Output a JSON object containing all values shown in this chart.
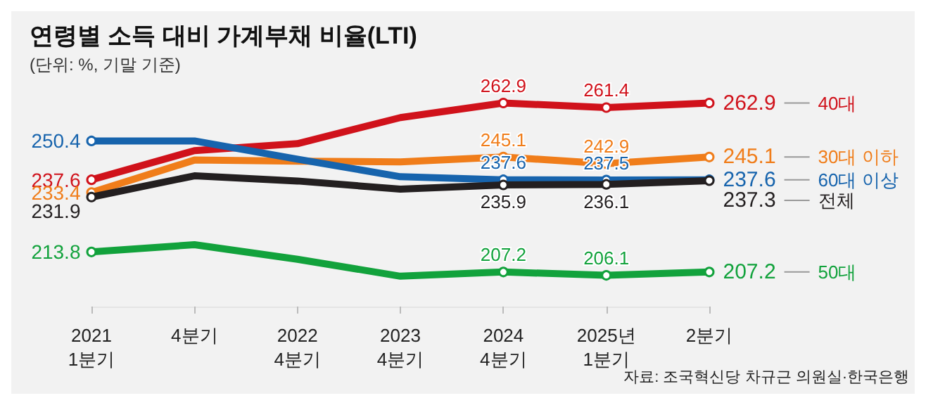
{
  "chart_data": {
    "type": "line",
    "title": "연령별 소득 대비 가계부채 비율(LTI)",
    "subtitle": "(단위: %, 기말 기준)",
    "categories": [
      "2021\n1분기",
      "4분기",
      "2022\n4분기",
      "2023\n4분기",
      "2024\n4분기",
      "2025년\n1분기",
      "2분기"
    ],
    "series": [
      {
        "name": "40대",
        "color": "#d0121b",
        "values": [
          237.6,
          247.2,
          249.5,
          258.1,
          262.9,
          261.4,
          262.9
        ],
        "value_labels": [
          "237.6",
          null,
          null,
          null,
          "262.9",
          "261.4",
          "262.9"
        ]
      },
      {
        "name": "30대 이하",
        "color": "#f07d1a",
        "values": [
          233.4,
          244.1,
          243.7,
          243.5,
          245.1,
          242.9,
          245.1
        ],
        "value_labels": [
          "233.4",
          null,
          null,
          null,
          "245.1",
          "242.9",
          "245.1"
        ]
      },
      {
        "name": "60대 이상",
        "color": "#1764ad",
        "values": [
          250.4,
          250.4,
          244.4,
          238.6,
          237.6,
          237.5,
          237.6
        ],
        "value_labels": [
          "250.4",
          null,
          null,
          null,
          "237.6",
          "237.5",
          "237.6"
        ]
      },
      {
        "name": "전체",
        "color": "#231f20",
        "values": [
          231.9,
          238.9,
          237.2,
          234.5,
          235.9,
          236.1,
          237.3
        ],
        "value_labels": [
          "231.9",
          null,
          null,
          null,
          "235.9",
          "236.1",
          "237.3"
        ]
      },
      {
        "name": "50대",
        "color": "#12a23c",
        "values": [
          213.8,
          216.2,
          211.4,
          205.8,
          207.2,
          206.1,
          207.2
        ],
        "value_labels": [
          "213.8",
          null,
          null,
          null,
          "207.2",
          "206.1",
          "207.2"
        ]
      }
    ],
    "marker": "circle",
    "grid": false,
    "legend": false,
    "annotations": [
      "자료: 조국혁신당 차규근 의원실·한국은행"
    ]
  }
}
